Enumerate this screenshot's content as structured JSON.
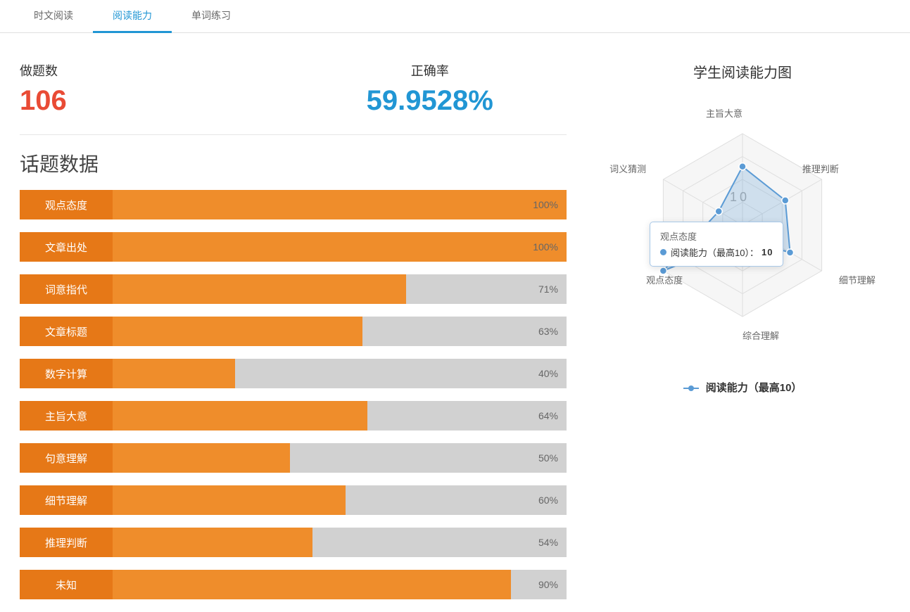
{
  "tabs": [
    {
      "label": "时文阅读",
      "active": false
    },
    {
      "label": "阅读能力",
      "active": true
    },
    {
      "label": "单词练习",
      "active": false
    }
  ],
  "stats": {
    "questions": {
      "label": "做题数",
      "value": "106",
      "color_class": "red"
    },
    "accuracy": {
      "label": "正确率",
      "value": "59.9528%",
      "color_class": "blue"
    }
  },
  "section_title": "话题数据",
  "bar_colors": {
    "label_bg": "#e67817",
    "fill_bg": "#ef8d2b",
    "track_bg": "#d1d1d1",
    "pct_color": "#666666"
  },
  "bars": [
    {
      "label": "观点态度",
      "value": 100
    },
    {
      "label": "文章出处",
      "value": 100
    },
    {
      "label": "词意指代",
      "value": 71
    },
    {
      "label": "文章标题",
      "value": 63
    },
    {
      "label": "数字计算",
      "value": 40
    },
    {
      "label": "主旨大意",
      "value": 64
    },
    {
      "label": "句意理解",
      "value": 50
    },
    {
      "label": "细节理解",
      "value": 60
    },
    {
      "label": "推理判断",
      "value": 54
    },
    {
      "label": "未知",
      "value": 90
    }
  ],
  "radar": {
    "title": "学生阅读能力图",
    "legend": "阅读能力（最高10）",
    "max": 10,
    "rings": 4,
    "center_label": "10",
    "size": 380,
    "radius": 130,
    "grid_stroke": "#dedede",
    "grid_fill": "#f6f6f6",
    "series_stroke": "#5b9bd5",
    "series_fill": "rgba(91,155,213,0.25)",
    "point_radius": 5,
    "axes": [
      {
        "label": "主旨大意",
        "value": 6.4
      },
      {
        "label": "推理判断",
        "value": 5.4
      },
      {
        "label": "细节理解",
        "value": 6.0
      },
      {
        "label": "综合理解",
        "value": 1.5
      },
      {
        "label": "观点态度",
        "value": 10.0
      },
      {
        "label": "词义猜测",
        "value": 3.0
      }
    ],
    "tooltip": {
      "title": "观点态度",
      "item_label": "阅读能力（最高10）：",
      "item_value": "10"
    }
  }
}
